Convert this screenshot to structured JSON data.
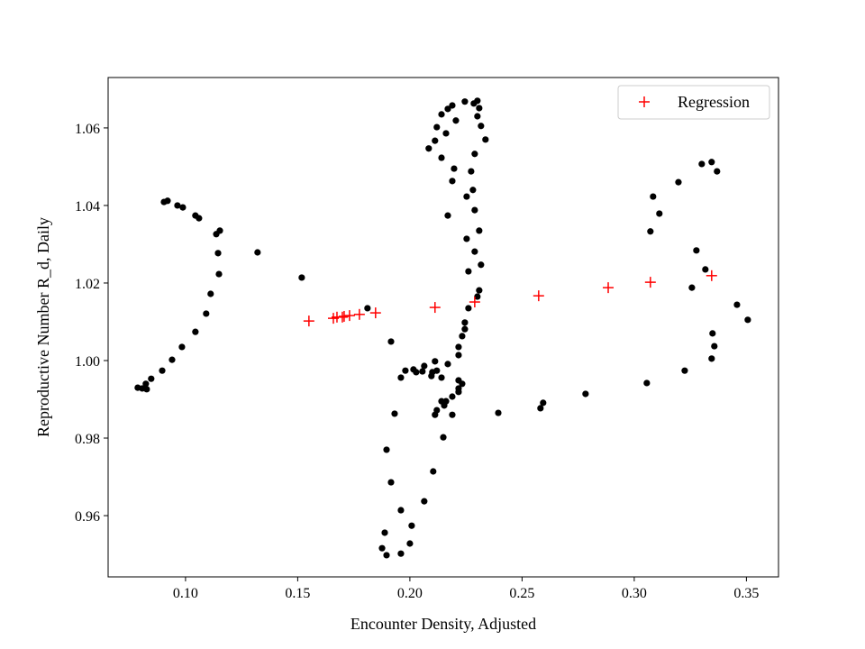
{
  "chart_data": {
    "type": "scatter",
    "title": "",
    "xlabel": "Encounter Density, Adjusted",
    "ylabel": "Reproductive Number R_d, Daily",
    "xlim": [
      0.0655,
      0.3643
    ],
    "ylim": [
      0.9442,
      1.073
    ],
    "xticks": [
      0.1,
      0.15,
      0.2,
      0.25,
      0.3,
      0.35
    ],
    "xtick_labels": [
      "0.10",
      "0.15",
      "0.20",
      "0.25",
      "0.30",
      "0.35"
    ],
    "yticks": [
      0.96,
      0.98,
      1.0,
      1.02,
      1.04,
      1.06
    ],
    "ytick_labels": [
      "0.96",
      "0.98",
      "1.00",
      "1.02",
      "1.04",
      "1.06"
    ],
    "grid": false,
    "legend": {
      "position": "top-right",
      "entries": [
        "Regression"
      ]
    },
    "series": [
      {
        "marker": "dot",
        "color": "#000000",
        "x": [
          0.0787,
          0.0807,
          0.0827,
          0.0823,
          0.0847,
          0.0896,
          0.094,
          0.0984,
          0.1044,
          0.1092,
          0.1112,
          0.1145,
          0.1149,
          0.1137,
          0.1153,
          0.106,
          0.1044,
          0.0988,
          0.0964,
          0.092,
          0.0904,
          0.1321,
          0.1518,
          0.1811,
          0.2245,
          0.2285,
          0.2301,
          0.2189,
          0.2169,
          0.2309,
          0.2141,
          0.2301,
          0.2205,
          0.212,
          0.2317,
          0.2161,
          0.2112,
          0.2337,
          0.2084,
          0.2289,
          0.2141,
          0.2197,
          0.2273,
          0.2189,
          0.2281,
          0.2253,
          0.2289,
          0.2169,
          0.2309,
          0.2253,
          0.2289,
          0.2317,
          0.2261,
          0.2309,
          0.2301,
          0.2261,
          0.2245,
          0.2245,
          0.2233,
          0.2217,
          0.2217,
          0.1916,
          0.2112,
          0.2169,
          0.2064,
          0.198,
          0.2016,
          0.2028,
          0.2056,
          0.212,
          0.21,
          0.2096,
          0.2141,
          0.196,
          0.2217,
          0.2233,
          0.2217,
          0.2217,
          0.2189,
          0.2161,
          0.2141,
          0.2153,
          0.212,
          0.2112,
          0.2189,
          0.1932,
          0.2394,
          0.2149,
          0.1896,
          0.2104,
          0.1916,
          0.2064,
          0.196,
          0.2008,
          0.1888,
          0.2,
          0.1876,
          0.1896,
          0.196,
          0.2582,
          0.2594,
          0.2783,
          0.3056,
          0.3225,
          0.3369,
          0.3345,
          0.3301,
          0.3197,
          0.3112,
          0.3084,
          0.3072,
          0.3277,
          0.3317,
          0.3257,
          0.3458,
          0.3349,
          0.3357,
          0.3345,
          0.3506
        ],
        "y": [
          0.993,
          0.9928,
          0.9926,
          0.994,
          0.9953,
          0.9974,
          1.0002,
          1.0035,
          1.0074,
          1.0121,
          1.0172,
          1.0277,
          1.0223,
          1.0326,
          1.0335,
          1.0367,
          1.0374,
          1.0395,
          1.04,
          1.0412,
          1.0409,
          1.0279,
          1.0214,
          1.0135,
          1.0668,
          1.0663,
          1.067,
          1.0658,
          1.0649,
          1.0651,
          1.0635,
          1.063,
          1.0619,
          1.0602,
          1.0605,
          1.0586,
          1.0567,
          1.057,
          1.0547,
          1.0533,
          1.0523,
          1.0495,
          1.0488,
          1.0463,
          1.044,
          1.0423,
          1.0388,
          1.0374,
          1.0335,
          1.0314,
          1.0281,
          1.0247,
          1.023,
          1.0181,
          1.0165,
          1.0135,
          1.0098,
          1.0081,
          1.0063,
          1.0035,
          1.0014,
          1.0049,
          0.9998,
          0.9991,
          0.9986,
          0.9974,
          0.9977,
          0.997,
          0.9972,
          0.9974,
          0.997,
          0.996,
          0.9956,
          0.9956,
          0.9949,
          0.994,
          0.9928,
          0.9919,
          0.9907,
          0.9895,
          0.9895,
          0.9884,
          0.9872,
          0.986,
          0.986,
          0.9863,
          0.9865,
          0.9802,
          0.977,
          0.9714,
          0.9686,
          0.9637,
          0.9614,
          0.9574,
          0.9556,
          0.9528,
          0.9516,
          0.9498,
          0.9502,
          0.9877,
          0.9891,
          0.9914,
          0.9942,
          0.9974,
          1.0488,
          1.0512,
          1.0507,
          1.046,
          1.0379,
          1.0423,
          1.0333,
          1.0284,
          1.0235,
          1.0188,
          1.0144,
          1.007,
          1.0037,
          1.0005,
          1.0105
        ]
      },
      {
        "name": "Regression",
        "marker": "plus",
        "color": "#ff0000",
        "x": [
          0.155,
          0.1659,
          0.1675,
          0.1699,
          0.1707,
          0.1731,
          0.1775,
          0.1847,
          0.2112,
          0.2289,
          0.2574,
          0.2884,
          0.3072,
          0.3345
        ],
        "y": [
          1.0102,
          1.0109,
          1.0112,
          1.0112,
          1.0114,
          1.0116,
          1.0119,
          1.0123,
          1.0137,
          1.0151,
          1.0167,
          1.0188,
          1.0202,
          1.0219
        ]
      }
    ]
  }
}
